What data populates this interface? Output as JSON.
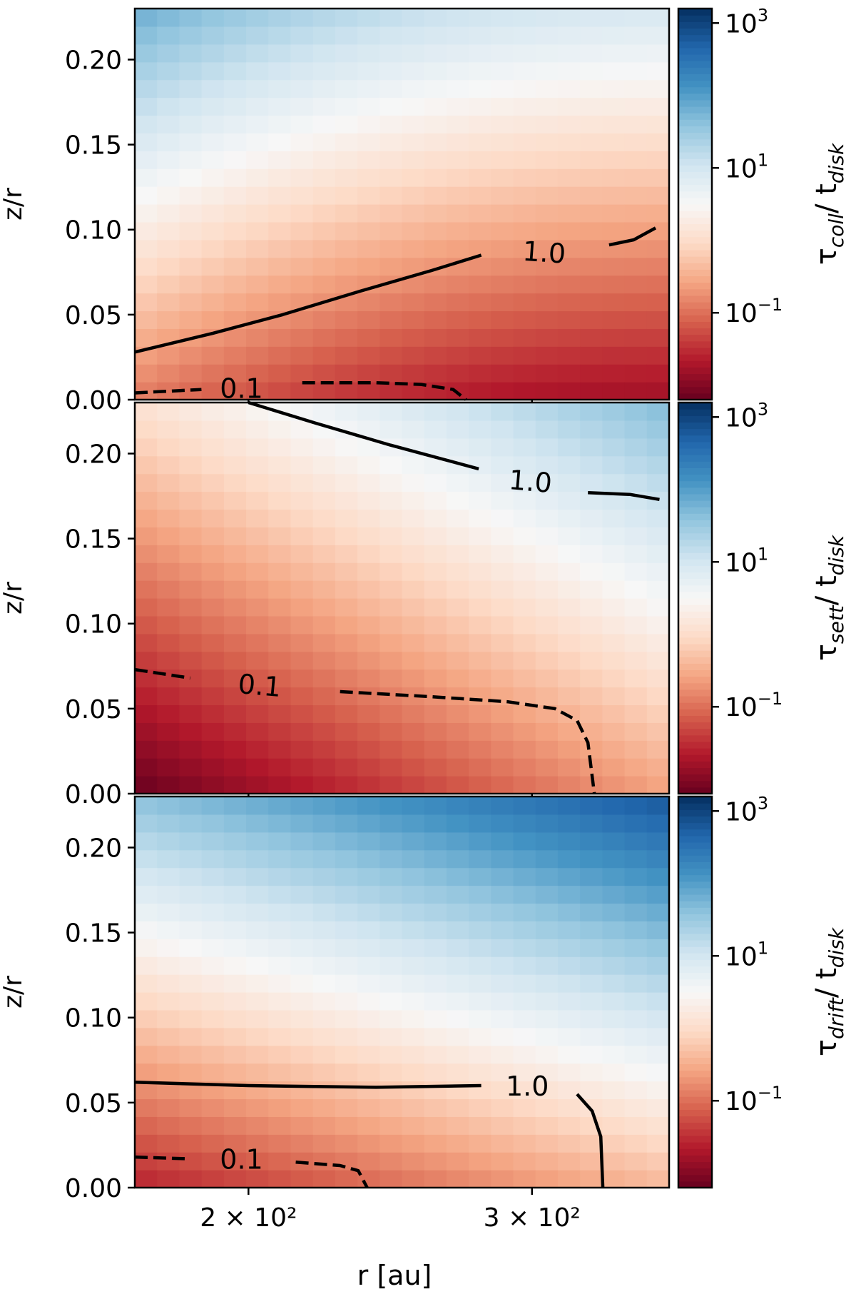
{
  "chart_data": {
    "type": "heatmap",
    "shared_xlabel": "r [au]",
    "x_scale": "log",
    "xlim": [
      170,
      365
    ],
    "x_ticks": [
      {
        "value": 200,
        "label": "2 × 10²"
      },
      {
        "value": 300,
        "label": "3 × 10²"
      }
    ],
    "colormap": "RdBu (red = low, white ≈ 1, blue = high)",
    "colors": {
      "low": "#67001f",
      "mid": "#f7f7f7",
      "high": "#053061"
    },
    "panels": [
      {
        "name": "collision",
        "ylabel": "z/r",
        "ylim": [
          0,
          0.23
        ],
        "y_ticks": [
          "0.00",
          "0.05",
          "0.10",
          "0.15",
          "0.20"
        ],
        "colorbar_label": "τcoll/ tdisk",
        "colorbar_label_base": "τ",
        "colorbar_label_sub1": "coll",
        "colorbar_label_mid": "/ t",
        "colorbar_label_sub2": "disk",
        "colorbar_range_log10": [
          -2.2,
          3.2
        ],
        "colorbar_ticks": [
          {
            "log10": 3,
            "base": "10",
            "exp": "3"
          },
          {
            "log10": 1,
            "base": "10",
            "exp": "1"
          },
          {
            "log10": -1,
            "base": "10",
            "exp": "−1"
          }
        ],
        "field_model": {
          "cz": -0.9,
          "az": 12.0,
          "ar": -1.8,
          "ars": 0.9
        },
        "contours": [
          {
            "level": 1.0,
            "label": "1.0",
            "style": "solid",
            "segments": [
              [
                [
                  170,
                  0.028
                ],
                [
                  190,
                  0.039
                ],
                [
                  210,
                  0.05
                ],
                [
                  235,
                  0.064
                ],
                [
                  260,
                  0.076
                ],
                [
                  279,
                  0.085
                ]
              ],
              [
                [
                  335,
                  0.091
                ],
                [
                  347,
                  0.094
                ],
                [
                  358,
                  0.101
                ]
              ]
            ]
          },
          {
            "level": 0.1,
            "label": "0.1",
            "style": "dashed",
            "segments": [
              [
                [
                  170,
                  0.004
                ],
                [
                  187,
                  0.006
                ]
              ],
              [
                [
                  216,
                  0.01
                ],
                [
                  240,
                  0.01
                ],
                [
                  256,
                  0.009
                ],
                [
                  268,
                  0.006
                ],
                [
                  273,
                  0.0
                ]
              ]
            ]
          }
        ],
        "contour_labels": [
          {
            "text": "1.0",
            "x": 305,
            "y": 0.087,
            "angle": 4
          },
          {
            "text": "0.1",
            "x": 198,
            "y": 0.007,
            "angle": 0
          }
        ]
      },
      {
        "name": "settling",
        "ylabel": "z/r",
        "ylim": [
          0,
          0.23
        ],
        "y_ticks": [
          "0.00",
          "0.05",
          "0.10",
          "0.15",
          "0.20"
        ],
        "colorbar_label": "τsett/ tdisk",
        "colorbar_label_base": "τ",
        "colorbar_label_sub1": "sett",
        "colorbar_label_mid": "/ t",
        "colorbar_label_sub2": "disk",
        "colorbar_range_log10": [
          -2.2,
          3.2
        ],
        "colorbar_ticks": [
          {
            "log10": 3,
            "base": "10",
            "exp": "3"
          },
          {
            "log10": 1,
            "base": "10",
            "exp": "1"
          },
          {
            "log10": -1,
            "base": "10",
            "exp": "−1"
          }
        ],
        "field_model": {
          "cz": -2.2,
          "az": 10.0,
          "ar": 1.6,
          "ars": 0.0
        },
        "contours": [
          {
            "level": 1.0,
            "label": "1.0",
            "style": "solid",
            "segments": [
              [
                [
                  200,
                  0.23
                ],
                [
                  220,
                  0.218
                ],
                [
                  245,
                  0.205
                ],
                [
                  278,
                  0.191
                ]
              ],
              [
                [
                  325,
                  0.177
                ],
                [
                  345,
                  0.176
                ],
                [
                  360,
                  0.173
                ]
              ]
            ]
          },
          {
            "level": 0.1,
            "label": "0.1",
            "style": "dashed",
            "segments": [
              [
                [
                  170,
                  0.073
                ],
                [
                  184,
                  0.068
                ]
              ],
              [
                [
                  228,
                  0.06
                ],
                [
                  260,
                  0.057
                ],
                [
                  290,
                  0.054
                ],
                [
                  310,
                  0.05
                ],
                [
                  320,
                  0.043
                ],
                [
                  325,
                  0.03
                ],
                [
                  327,
                  0.01
                ],
                [
                  328,
                  0.0
                ]
              ]
            ]
          }
        ],
        "contour_labels": [
          {
            "text": "1.0",
            "x": 299,
            "y": 0.184,
            "angle": 5
          },
          {
            "text": "0.1",
            "x": 203,
            "y": 0.064,
            "angle": 5
          }
        ]
      },
      {
        "name": "drift",
        "ylabel": "z/r",
        "ylim": [
          0,
          0.23
        ],
        "y_ticks": [
          "0.00",
          "0.05",
          "0.10",
          "0.15",
          "0.20"
        ],
        "colorbar_label": "τdrift/ tdisk",
        "colorbar_label_base": "τ",
        "colorbar_label_sub1": "drift",
        "colorbar_label_mid": "/ t",
        "colorbar_label_sub2": "disk",
        "colorbar_range_log10": [
          -2.2,
          3.2
        ],
        "colorbar_ticks": [
          {
            "log10": 3,
            "base": "10",
            "exp": "3"
          },
          {
            "log10": 1,
            "base": "10",
            "exp": "1"
          },
          {
            "log10": -1,
            "base": "10",
            "exp": "−1"
          }
        ],
        "field_model": {
          "cz": -1.6,
          "az": 14.0,
          "ar": 1.2,
          "ars": 0.0
        },
        "contours": [
          {
            "level": 1.0,
            "label": "1.0",
            "style": "solid",
            "segments": [
              [
                [
                  170,
                  0.062
                ],
                [
                  200,
                  0.06
                ],
                [
                  240,
                  0.059
                ],
                [
                  279,
                  0.06
                ]
              ],
              [
                [
                  320,
                  0.055
                ],
                [
                  327,
                  0.045
                ],
                [
                  331,
                  0.03
                ],
                [
                  332,
                  0.0
                ]
              ]
            ]
          },
          {
            "level": 0.1,
            "label": "0.1",
            "style": "dashed",
            "segments": [
              [
                [
                  170,
                  0.018
                ],
                [
                  183,
                  0.017
                ]
              ],
              [
                [
                  214,
                  0.015
                ],
                [
                  228,
                  0.013
                ],
                [
                  234,
                  0.01
                ],
                [
                  237,
                  0.0
                ]
              ]
            ]
          }
        ],
        "contour_labels": [
          {
            "text": "1.0",
            "x": 298,
            "y": 0.06,
            "angle": 0
          },
          {
            "text": "0.1",
            "x": 198,
            "y": 0.017,
            "angle": 0
          }
        ]
      }
    ]
  }
}
